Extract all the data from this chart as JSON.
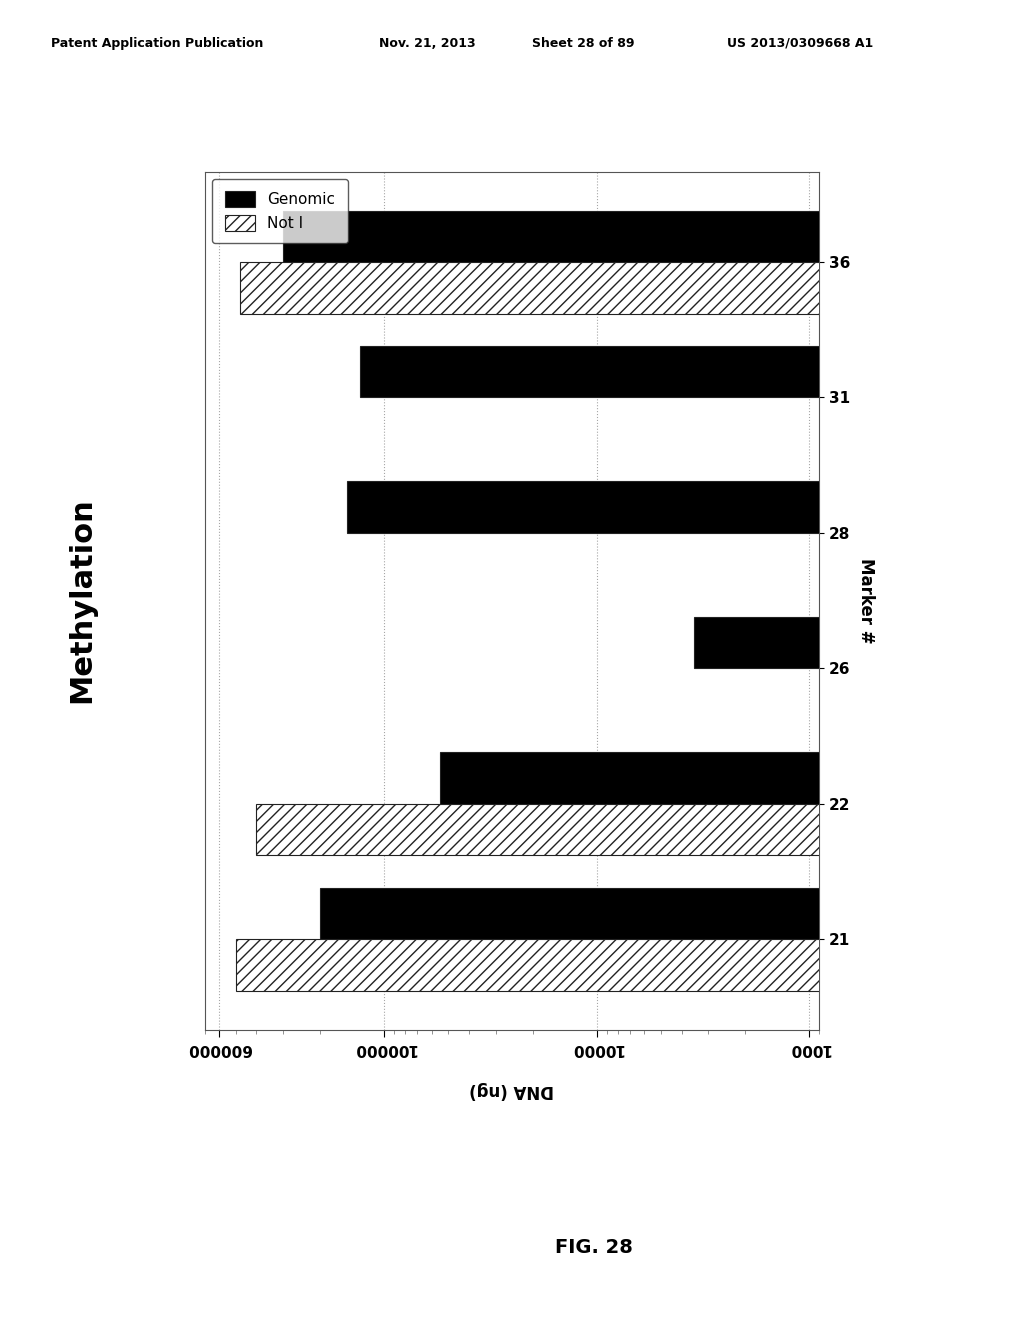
{
  "title": "Methylation",
  "xlabel_label": "Marker #",
  "ylabel_label": "DNA (ng)",
  "markers": [
    "21",
    "22",
    "26",
    "28",
    "31",
    "36"
  ],
  "genomic": [
    200000,
    55000,
    3500,
    150000,
    130000,
    300000
  ],
  "not_i": [
    500000,
    400000,
    800,
    800,
    800,
    480000
  ],
  "bar_color_genomic": "#000000",
  "hatch_not_i": "///",
  "xlog_min": 1000,
  "xlog_max": 700000,
  "x_ticks": [
    600000,
    100000,
    10000,
    1000
  ],
  "x_tick_labels": [
    "600000",
    "100000",
    "10000",
    "1000"
  ],
  "background_color": "#ffffff",
  "header_left": "Patent Application Publication",
  "header_mid1": "Nov. 21, 2013",
  "header_mid2": "Sheet 28 of 89",
  "header_right": "US 2013/0309668 A1",
  "fig_label": "FIG. 28",
  "legend_genomic": "Genomic",
  "legend_not_i": "Not I",
  "bar_height": 0.38,
  "title_fontsize": 22,
  "tick_fontsize": 11,
  "label_fontsize": 12,
  "legend_fontsize": 11
}
